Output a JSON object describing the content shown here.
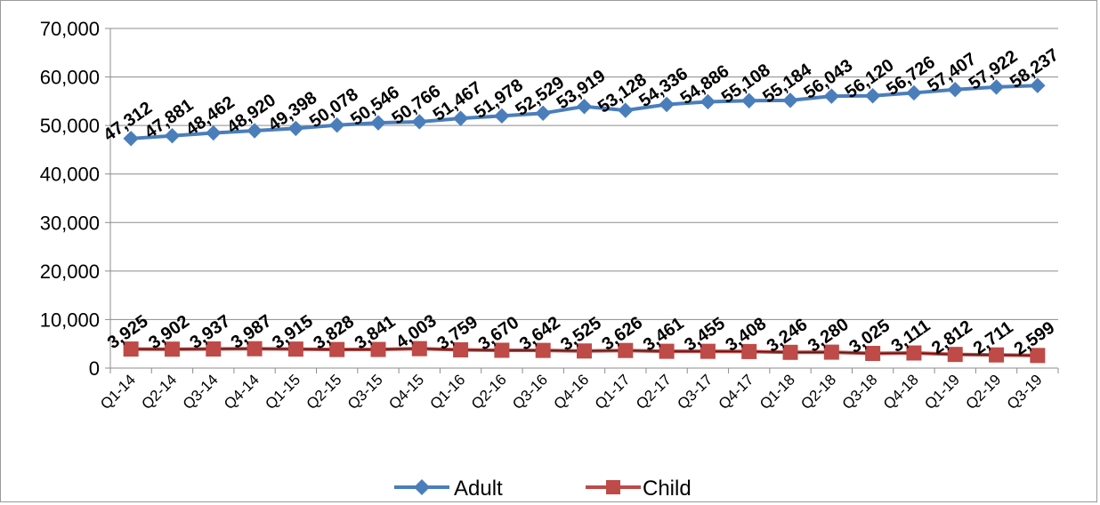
{
  "chart_data": {
    "type": "line",
    "title": "",
    "xlabel": "",
    "ylabel": "",
    "ylim": [
      0,
      70000
    ],
    "yticks": [
      0,
      10000,
      20000,
      30000,
      40000,
      50000,
      60000,
      70000
    ],
    "ytick_labels": [
      "0",
      "10,000",
      "20,000",
      "30,000",
      "40,000",
      "50,000",
      "60,000",
      "70,000"
    ],
    "grid": true,
    "legend_position": "bottom",
    "categories": [
      "Q1-14",
      "Q2-14",
      "Q3-14",
      "Q4-14",
      "Q1-15",
      "Q2-15",
      "Q3-15",
      "Q4-15",
      "Q1-16",
      "Q2-16",
      "Q3-16",
      "Q4-16",
      "Q1-17",
      "Q2-17",
      "Q3-17",
      "Q4-17",
      "Q1-18",
      "Q2-18",
      "Q3-18",
      "Q4-18",
      "Q1-19",
      "Q2-19",
      "Q3-19"
    ],
    "series": [
      {
        "name": "Adult",
        "color": "#4a7ebb",
        "marker": "diamond",
        "values": [
          47312,
          47881,
          48462,
          48920,
          49398,
          50078,
          50546,
          50766,
          51467,
          51978,
          52529,
          53919,
          53128,
          54336,
          54886,
          55108,
          55184,
          56043,
          56120,
          56726,
          57407,
          57922,
          58237
        ],
        "labels": [
          "47,312",
          "47,881",
          "48,462",
          "48,920",
          "49,398",
          "50,078",
          "50,546",
          "50,766",
          "51,467",
          "51,978",
          "52,529",
          "53,919",
          "53,128",
          "54,336",
          "54,886",
          "55,108",
          "55,184",
          "56,043",
          "56,120",
          "56,726",
          "57,407",
          "57,922",
          "58,237"
        ]
      },
      {
        "name": "Child",
        "color": "#be4b48",
        "marker": "square",
        "values": [
          3925,
          3902,
          3937,
          3987,
          3915,
          3828,
          3841,
          4003,
          3759,
          3670,
          3642,
          3525,
          3626,
          3461,
          3455,
          3408,
          3246,
          3280,
          3025,
          3111,
          2812,
          2711,
          2599
        ],
        "labels": [
          "3,925",
          "3,902",
          "3,937",
          "3,987",
          "3,915",
          "3,828",
          "3,841",
          "4,003",
          "3,759",
          "3,670",
          "3,642",
          "3,525",
          "3,626",
          "3,461",
          "3,455",
          "3,408",
          "3,246",
          "3,280",
          "3,025",
          "3,111",
          "2,812",
          "2,711",
          "2,599"
        ]
      }
    ]
  }
}
